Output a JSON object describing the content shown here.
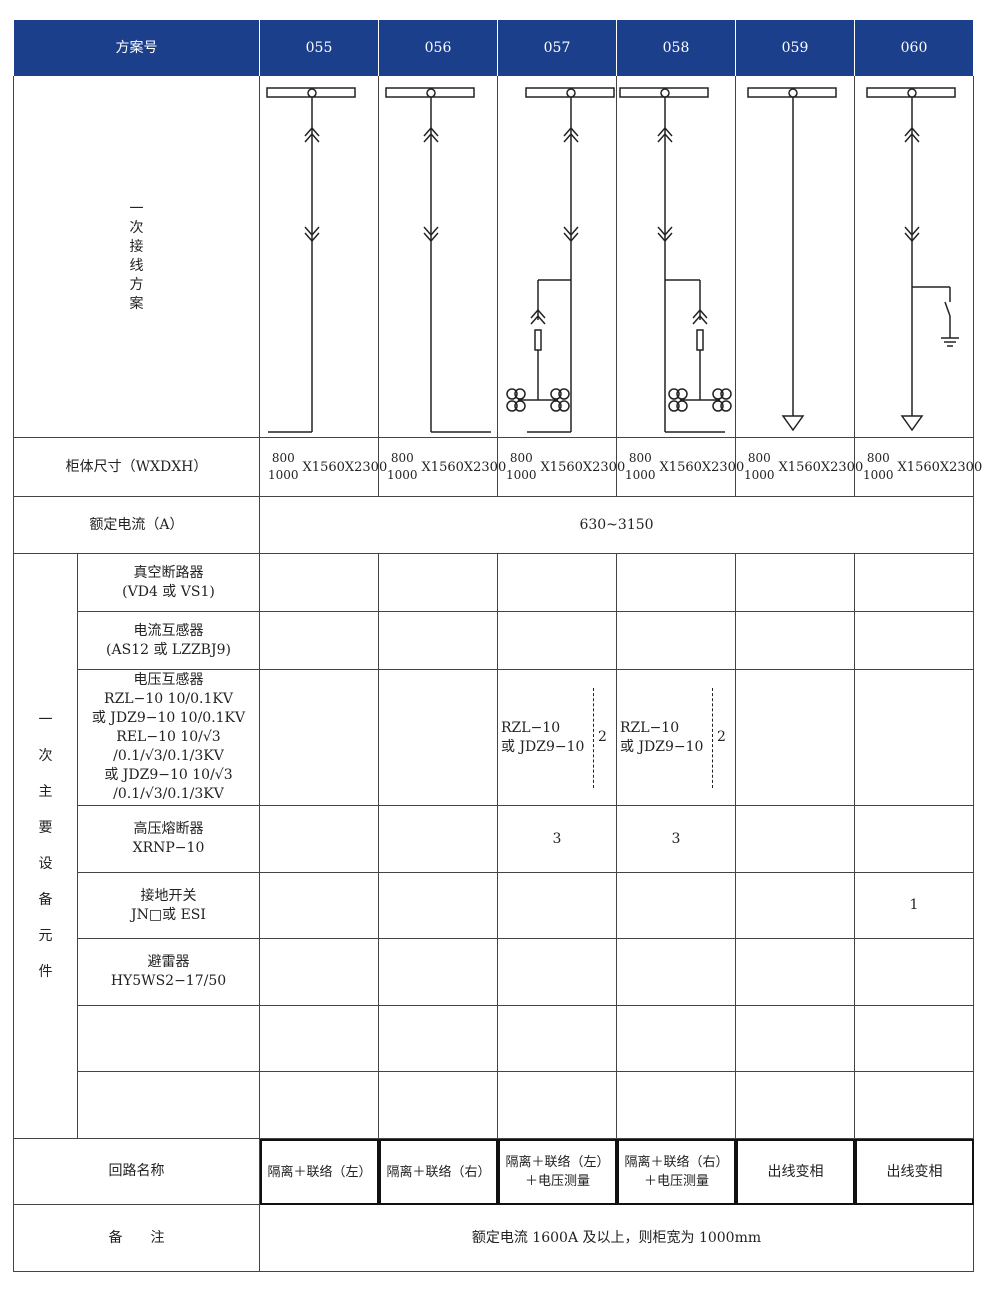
{
  "header": {
    "label": "方案号",
    "schemes": [
      "055",
      "056",
      "057",
      "058",
      "059",
      "060"
    ]
  },
  "diagram_row": {
    "label": "一次接线方案",
    "types": [
      "isolation-left",
      "isolation-right",
      "isolation-left-pt",
      "isolation-right-pt",
      "outgoing",
      "outgoing-earth"
    ]
  },
  "size_row": {
    "label": "柜体尺寸（WXDXH）",
    "width_top": "800",
    "width_bottom": "1000",
    "rest": "X1560X2300"
  },
  "current_row": {
    "label": "额定电流（A）",
    "value": "630~3150"
  },
  "equipment": {
    "group_label": "一次主要设备元件",
    "items": [
      {
        "lines": [
          "真空断路器",
          "(VD4 或 VS1)"
        ],
        "values": [
          "",
          "",
          "",
          "",
          "",
          ""
        ]
      },
      {
        "lines": [
          "电流互感器",
          "(AS12 或 LZZBJ9)"
        ],
        "values": [
          "",
          "",
          "",
          "",
          "",
          ""
        ]
      },
      {
        "lines": [
          "电压互感器",
          "RZL−10 10/0.1KV",
          "或 JDZ9−10 10/0.1KV",
          "REL−10 10/√3",
          "/0.1/√3/0.1/3KV",
          "或 JDZ9−10 10/√3",
          "/0.1/√3/0.1/3KV"
        ],
        "values": [
          "",
          "",
          "RZL−10\n或 JDZ9−10",
          "RZL−10\n或 JDZ9−10",
          "",
          ""
        ],
        "qty": [
          "",
          "",
          "2",
          "2",
          "",
          ""
        ]
      },
      {
        "lines": [
          "高压熔断器",
          "XRNP−10"
        ],
        "values": [
          "",
          "",
          "3",
          "3",
          "",
          ""
        ]
      },
      {
        "lines": [
          "接地开关",
          "JN□或 ESI"
        ],
        "values": [
          "",
          "",
          "",
          "",
          "",
          "1"
        ]
      },
      {
        "lines": [
          "避雷器",
          "HY5WS2−17/50"
        ],
        "values": [
          "",
          "",
          "",
          "",
          "",
          ""
        ]
      },
      {
        "lines": [],
        "values": [
          "",
          "",
          "",
          "",
          "",
          ""
        ]
      },
      {
        "lines": [],
        "values": [
          "",
          "",
          "",
          "",
          "",
          ""
        ]
      }
    ]
  },
  "circuit_row": {
    "label": "回路名称",
    "names": [
      "隔离＋联络（左）",
      "隔离＋联络（右）",
      "隔离＋联络（左）＋电压测量",
      "隔离＋联络（右）＋电压测量",
      "出线变相",
      "出线变相"
    ]
  },
  "remarks_row": {
    "label": "备　　注",
    "value": "额定电流 1600A 及以上，则柜宽为 1000mm"
  },
  "colors": {
    "header_bg": "#1c3f8c",
    "header_text": "#ffffff",
    "grid": "#444444"
  }
}
